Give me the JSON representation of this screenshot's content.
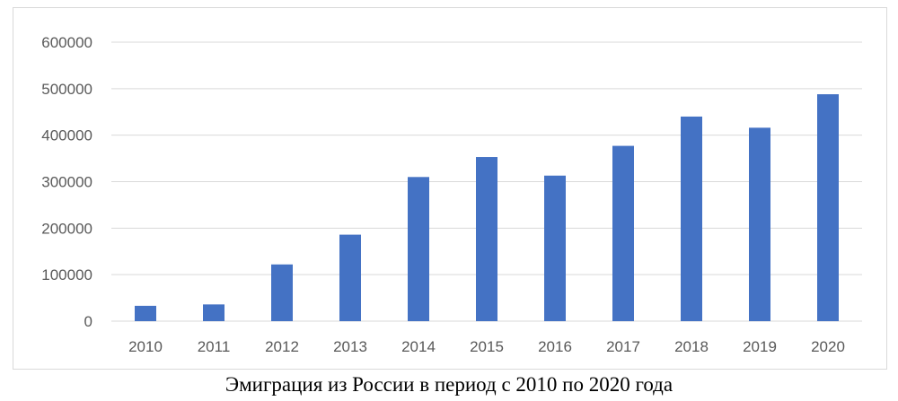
{
  "caption": "Эмиграция из России в период с 2010 по 2020 года",
  "colors": {
    "bar": "#4472c4",
    "grid": "#d9d9d9",
    "tick_text": "#595959"
  },
  "chart_data": {
    "type": "bar",
    "title": "",
    "xlabel": "",
    "ylabel": "",
    "categories": [
      "2010",
      "2011",
      "2012",
      "2013",
      "2014",
      "2015",
      "2016",
      "2017",
      "2018",
      "2019",
      "2020"
    ],
    "values": [
      33000,
      36000,
      122000,
      186000,
      310000,
      353000,
      313000,
      377000,
      440000,
      416000,
      488000
    ],
    "ylim": [
      0,
      600000
    ],
    "yticks": [
      "0",
      "100000",
      "200000",
      "300000",
      "400000",
      "500000",
      "600000"
    ],
    "grid": true,
    "legend": false
  }
}
